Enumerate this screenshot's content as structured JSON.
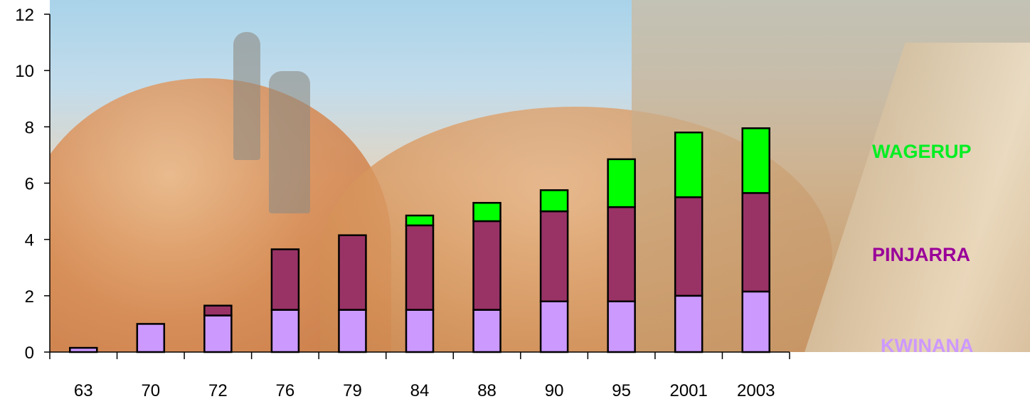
{
  "chart_data": {
    "type": "bar",
    "stacked": true,
    "categories": [
      "63",
      "70",
      "72",
      "76",
      "79",
      "84",
      "88",
      "90",
      "95",
      "2001",
      "2003"
    ],
    "series": [
      {
        "name": "KWINANA",
        "color": "#cc99ff",
        "values": [
          0.15,
          1.0,
          1.3,
          1.5,
          1.5,
          1.5,
          1.5,
          1.8,
          1.8,
          2.0,
          2.15
        ]
      },
      {
        "name": "PINJARRA",
        "color": "#993366",
        "values": [
          0,
          0,
          0.35,
          2.15,
          2.65,
          3.0,
          3.15,
          3.2,
          3.35,
          3.5,
          3.5
        ]
      },
      {
        "name": "WAGERUP",
        "color": "#00ff00",
        "values": [
          0,
          0,
          0,
          0,
          0,
          0.35,
          0.65,
          0.75,
          1.7,
          2.3,
          2.3
        ]
      }
    ],
    "yticks": [
      "0",
      "2",
      "4",
      "6",
      "8",
      "10",
      "12"
    ],
    "ylim": [
      0,
      12
    ],
    "grid": false,
    "legend_position": "right"
  },
  "legend": {
    "wagerup": {
      "label": "WAGERUP",
      "color": "#00ee22"
    },
    "pinjarra": {
      "label": "PINJARRA",
      "color": "#990099"
    },
    "kwinana": {
      "label": "KWINANA",
      "color": "#cc99ff"
    }
  }
}
